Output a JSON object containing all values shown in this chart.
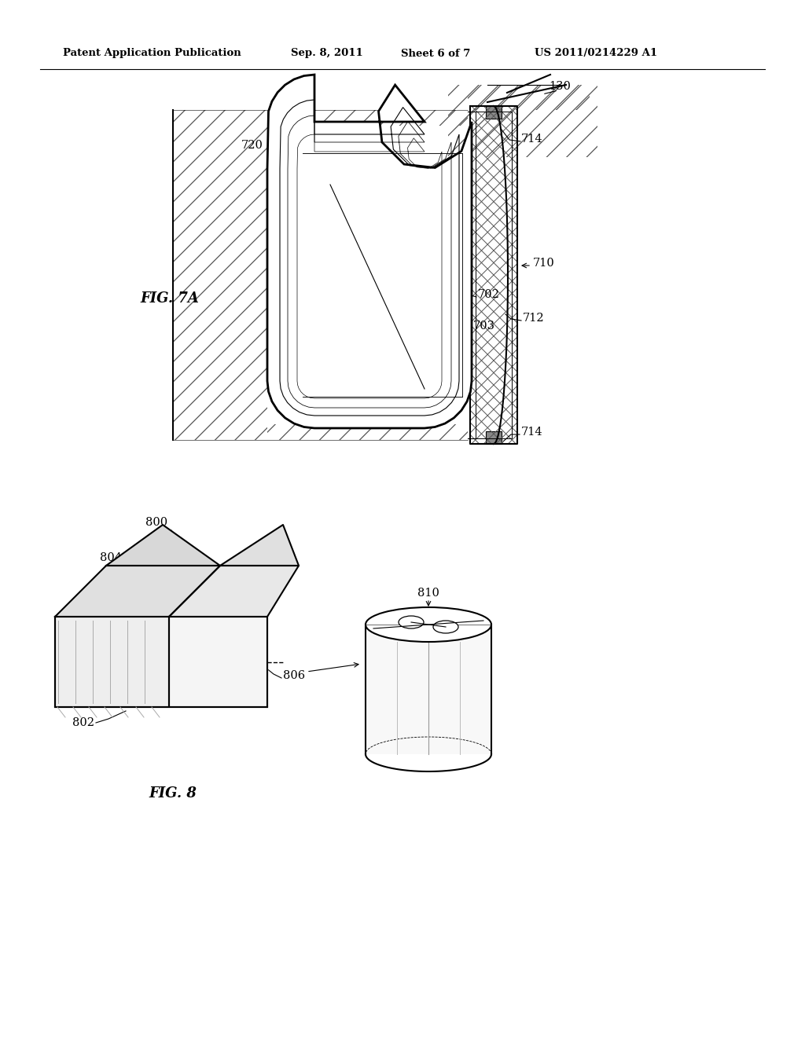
{
  "bg_color": "#ffffff",
  "line_color": "#000000",
  "header_text": "Patent Application Publication",
  "header_date": "Sep. 8, 2011",
  "header_sheet": "Sheet 6 of 7",
  "header_patent": "US 2011/0214229 A1",
  "fig7a_label": "FIG. 7A",
  "fig8_label": "FIG. 8"
}
